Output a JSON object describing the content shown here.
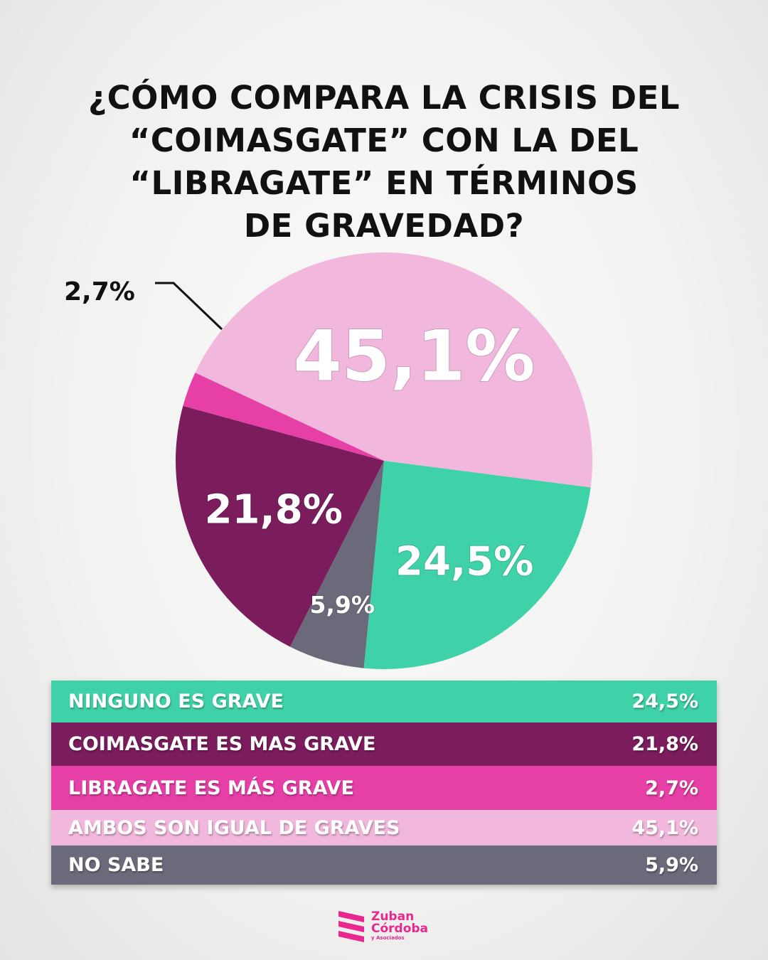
{
  "title": "¿CÓMO COMPARA LA CRISIS DEL\n“COIMASGATE” CON LA DEL\n“LIBRAGATE” EN TÉRMINOS\nDE GRAVEDAD?",
  "chart_data": {
    "type": "pie",
    "slices": [
      {
        "label": "AMBOS SON IGUAL DE GRAVES",
        "value": 45.1,
        "display": "45,1%",
        "color": "#f1b7dc"
      },
      {
        "label": "NINGUNO ES GRAVE",
        "value": 24.5,
        "display": "24,5%",
        "color": "#3fd2a8"
      },
      {
        "label": "NO SABE",
        "value": 5.9,
        "display": "5,9%",
        "color": "#6b6a7a"
      },
      {
        "label": "COIMASGATE ES MAS GRAVE",
        "value": 21.8,
        "display": "21,8%",
        "color": "#7b1d5d"
      },
      {
        "label": "LIBRAGATE ES MÁS GRAVE",
        "value": 2.7,
        "display": "2,7%",
        "color": "#e63fa6"
      }
    ]
  },
  "legend": [
    {
      "label": "NINGUNO ES GRAVE",
      "value": "24,5%",
      "color": "#3fd2a8"
    },
    {
      "label": "COIMASGATE ES MAS GRAVE",
      "value": "21,8%",
      "color": "#7b1d5d"
    },
    {
      "label": "LIBRAGATE ES MÁS GRAVE",
      "value": "2,7%",
      "color": "#e63fa6"
    },
    {
      "label": "AMBOS SON IGUAL DE GRAVES",
      "value": "45,1%",
      "color": "#f1b7dc"
    },
    {
      "label": "NO SABE",
      "value": "5,9%",
      "color": "#6b6a7a"
    }
  ],
  "logo": {
    "line1": "Zuban",
    "line2": "Córdoba",
    "line3": "y Asociados",
    "color": "#e8278f"
  }
}
